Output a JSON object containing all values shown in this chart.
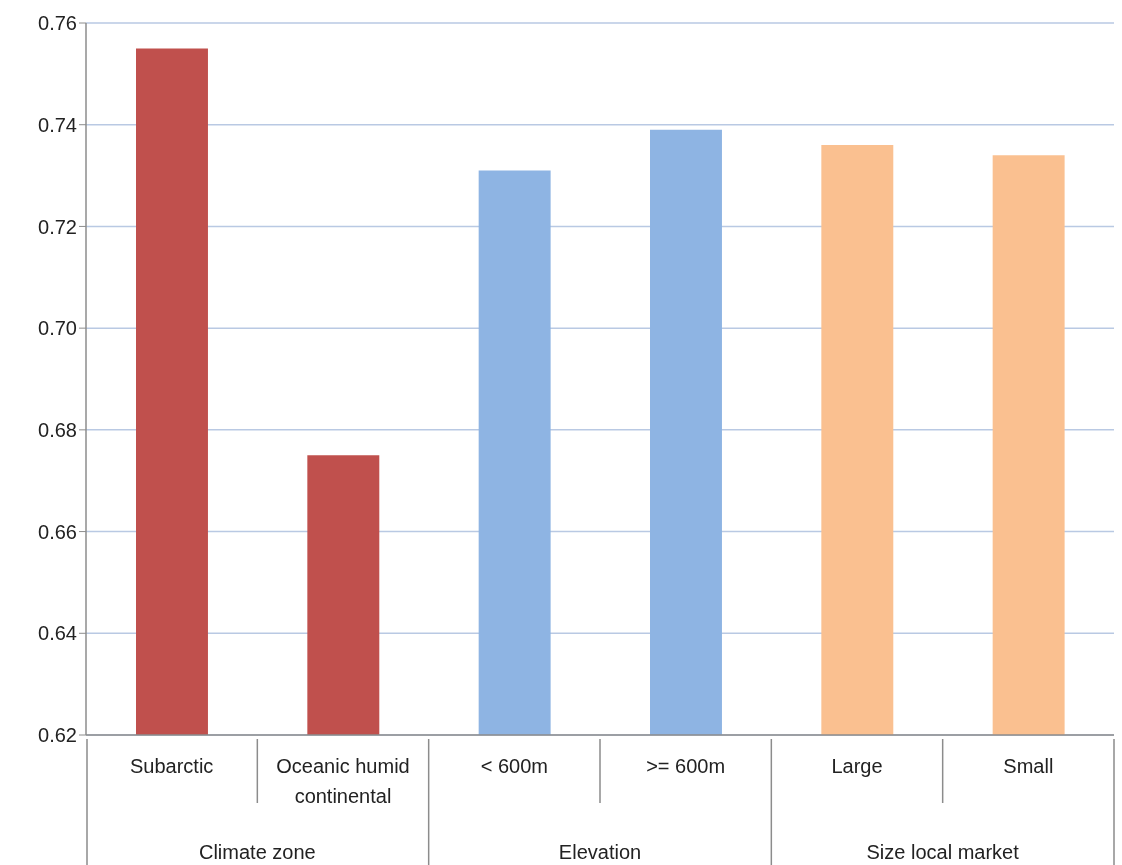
{
  "chart_data": {
    "type": "bar",
    "categories": [
      "Subarctic",
      "Oceanic humid continental",
      "< 600m",
      ">= 600m",
      "Large",
      "Small"
    ],
    "values": [
      0.755,
      0.675,
      0.731,
      0.739,
      0.736,
      0.734
    ],
    "colors": [
      "#c0504d",
      "#c0504d",
      "#8eb4e3",
      "#8eb4e3",
      "#fac090",
      "#fac090"
    ],
    "annotations": [
      "Climate zone",
      "Elevation",
      "Size local market"
    ],
    "ylim": [
      0.62,
      0.76
    ],
    "yticks": [
      {
        "value": 0.62,
        "label": "0.62"
      },
      {
        "value": 0.64,
        "label": "0.64"
      },
      {
        "value": 0.66,
        "label": "0.66"
      },
      {
        "value": 0.68,
        "label": "0.68"
      },
      {
        "value": 0.7,
        "label": "0.70"
      },
      {
        "value": 0.72,
        "label": "0.72"
      },
      {
        "value": 0.74,
        "label": "0.74"
      },
      {
        "value": 0.76,
        "label": "0.76"
      }
    ],
    "grid": "y"
  }
}
